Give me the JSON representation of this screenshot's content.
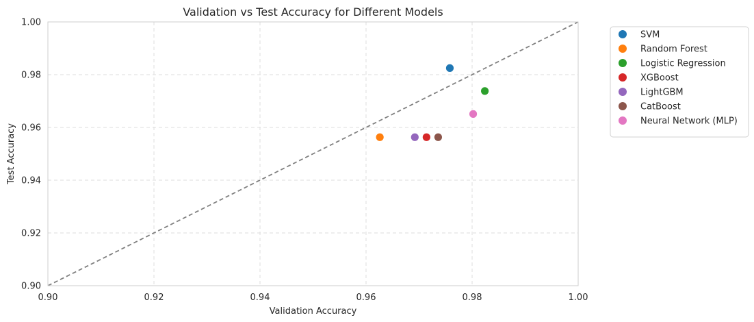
{
  "chart_data": {
    "type": "scatter",
    "title": "Validation vs Test Accuracy for Different Models",
    "xlabel": "Validation Accuracy",
    "ylabel": "Test Accuracy",
    "xlim": [
      0.9,
      1.0
    ],
    "ylim": [
      0.9,
      1.0
    ],
    "xticks": [
      0.9,
      0.92,
      0.94,
      0.96,
      0.98,
      1.0
    ],
    "yticks": [
      0.9,
      0.92,
      0.94,
      0.96,
      0.98,
      1.0
    ],
    "xtick_labels": [
      "0.90",
      "0.92",
      "0.94",
      "0.96",
      "0.98",
      "1.00"
    ],
    "ytick_labels": [
      "0.90",
      "0.92",
      "0.94",
      "0.96",
      "0.98",
      "1.00"
    ],
    "grid": true,
    "reference_line": {
      "style": "dashed",
      "color": "#808080",
      "from": [
        0.9,
        0.9
      ],
      "to": [
        1.0,
        1.0
      ]
    },
    "legend_position": "outside-right-top",
    "series": [
      {
        "name": "SVM",
        "color": "#1f77b4",
        "x": 0.9758,
        "y": 0.9825
      },
      {
        "name": "Random Forest",
        "color": "#ff7f0e",
        "x": 0.9626,
        "y": 0.9563
      },
      {
        "name": "Logistic Regression",
        "color": "#2ca02c",
        "x": 0.9824,
        "y": 0.9738
      },
      {
        "name": "XGBoost",
        "color": "#d62728",
        "x": 0.9714,
        "y": 0.9563
      },
      {
        "name": "LightGBM",
        "color": "#9467bd",
        "x": 0.9692,
        "y": 0.9563
      },
      {
        "name": "CatBoost",
        "color": "#8c564b",
        "x": 0.9736,
        "y": 0.9563
      },
      {
        "name": "Neural Network (MLP)",
        "color": "#e377c2",
        "x": 0.9802,
        "y": 0.9651
      }
    ]
  }
}
